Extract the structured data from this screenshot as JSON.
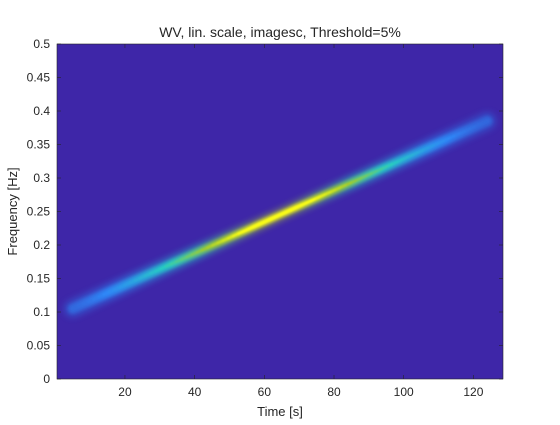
{
  "chart_data": {
    "type": "heatmap",
    "title": "WV, lin. scale, imagesc, Threshold=5%",
    "xlabel": "Time [s]",
    "ylabel": "Frequency [Hz]",
    "xlim": [
      0.5,
      128.5
    ],
    "ylim": [
      0,
      0.5
    ],
    "y_direction": "normal",
    "xticks": [
      20,
      40,
      60,
      80,
      100,
      120
    ],
    "xtick_labels": [
      "20",
      "40",
      "60",
      "80",
      "100",
      "120"
    ],
    "yticks": [
      0,
      0.05,
      0.1,
      0.15,
      0.2,
      0.25,
      0.3,
      0.35,
      0.4,
      0.45,
      0.5
    ],
    "ytick_labels": [
      "0",
      "0.05",
      "0.1",
      "0.15",
      "0.2",
      "0.25",
      "0.3",
      "0.35",
      "0.4",
      "0.45",
      "0.5"
    ],
    "grid": false,
    "colormap": "parula",
    "background_color": "#3e26a8",
    "ridge": {
      "description": "linear chirp Wigner-Ville ridge",
      "t_start": 5,
      "f_start": 0.105,
      "t_end": 124,
      "f_end": 0.385,
      "peak_time": 64,
      "colors": [
        "#3e26a8",
        "#2e87f7",
        "#27ccc2",
        "#a0ca2f",
        "#f9fb15"
      ]
    }
  }
}
